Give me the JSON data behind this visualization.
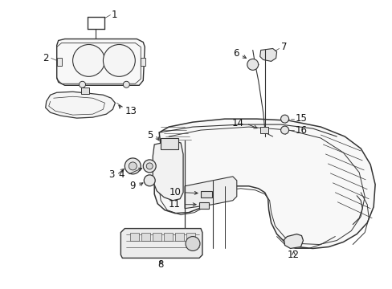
{
  "bg_color": "#ffffff",
  "line_color": "#333333",
  "label_color": "#111111",
  "fig_width": 4.89,
  "fig_height": 3.6,
  "dpi": 100,
  "label_fontsize": 8.5
}
